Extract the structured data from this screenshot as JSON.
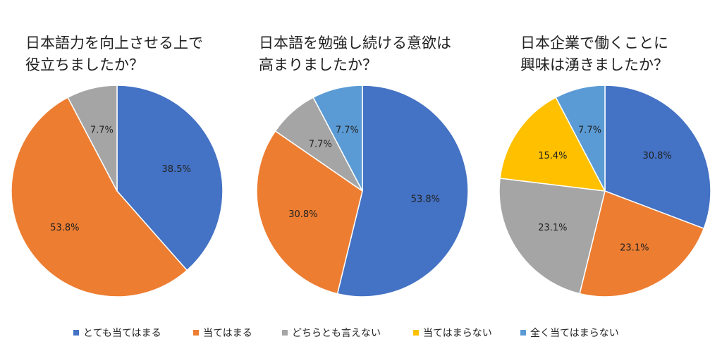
{
  "colors": {
    "とても当てはまる": "#4472C4",
    "当てはまる": "#ED7D31",
    "どちらとも言えない": "#A5A5A5",
    "当てはまらない": "#FFC000",
    "全く当てはまらない": "#5B9BD5"
  },
  "legend": [
    "とても当てはまる",
    "当てはまる",
    "どちらとも言えない",
    "当てはまらない",
    "全く当てはまらない"
  ],
  "chart_data": [
    {
      "type": "pie",
      "title_lines": [
        "日本語力を向上させる上で",
        "役立ちましたか？"
      ],
      "slices": [
        {
          "label": "とても当てはまる",
          "value": 38.5,
          "text": "38.5%"
        },
        {
          "label": "当てはまる",
          "value": 53.8,
          "text": "53.8%"
        },
        {
          "label": "どちらとも言えない",
          "value": 7.7,
          "text": "7.7%"
        }
      ]
    },
    {
      "type": "pie",
      "title_lines": [
        "日本語を勉強し続ける意欲は",
        "高まりましたか？"
      ],
      "slices": [
        {
          "label": "とても当てはまる",
          "value": 53.8,
          "text": "53.8%"
        },
        {
          "label": "当てはまる",
          "value": 30.8,
          "text": "30.8%"
        },
        {
          "label": "どちらとも言えない",
          "value": 7.7,
          "text": "7.7%"
        },
        {
          "label": "全く当てはまらない",
          "value": 7.7,
          "text": "7.7%"
        }
      ]
    },
    {
      "type": "pie",
      "title_lines": [
        "日本企業で働くことに",
        "興味は湧きましたか？"
      ],
      "slices": [
        {
          "label": "とても当てはまる",
          "value": 30.8,
          "text": "30.8%"
        },
        {
          "label": "当てはまる",
          "value": 23.1,
          "text": "23.1%"
        },
        {
          "label": "どちらとも言えない",
          "value": 23.1,
          "text": "23.1%"
        },
        {
          "label": "当てはまらない",
          "value": 15.4,
          "text": "15.4%"
        },
        {
          "label": "全く当てはまらない",
          "value": 7.7,
          "text": "7.7%"
        }
      ]
    }
  ]
}
